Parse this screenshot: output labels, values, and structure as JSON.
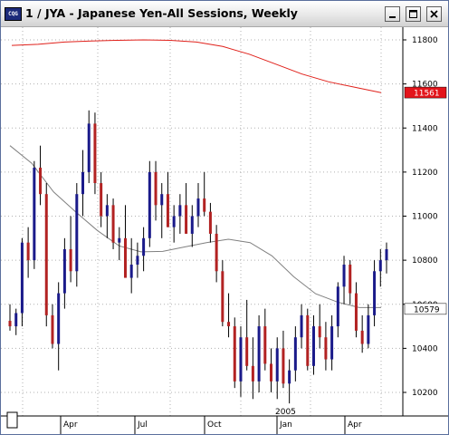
{
  "window": {
    "title": "1 / JYA - Japanese Yen-All Sessions, Weekly",
    "icon_name": "app-logo-icon",
    "icon_text": "CQG",
    "buttons": [
      "minimize-icon",
      "maximize-icon",
      "close-icon"
    ]
  },
  "chart_data": {
    "type": "candlestick",
    "y_ticks": [
      "11800",
      "11600",
      "11400",
      "11200",
      "11000",
      "10800",
      "10600",
      "10400",
      "10200"
    ],
    "ylim": [
      10100,
      11880
    ],
    "x_labels": [
      "Apr",
      "Jul",
      "Oct",
      "Jan",
      "Apr"
    ],
    "year_label": "2005",
    "grid": "dotted",
    "colors": {
      "up": "#1a1a8a",
      "down": "#b22222",
      "ma_long": "#e0201a",
      "ma_short": "#808080",
      "badge": "#e3141b"
    },
    "badges": [
      {
        "label": "11561",
        "value": 11561,
        "color": "#e3141b",
        "text_color": "#ffffff"
      },
      {
        "label": "10579",
        "value": 10579,
        "color": "#ffffff",
        "text_color": "#000000"
      }
    ],
    "bars": [
      [
        10525,
        10600,
        10480,
        10500
      ],
      [
        10500,
        10580,
        10460,
        10560
      ],
      [
        10560,
        10900,
        10500,
        10880
      ],
      [
        10880,
        10950,
        10720,
        10800
      ],
      [
        10800,
        11250,
        10760,
        11220
      ],
      [
        11220,
        11320,
        11050,
        11100
      ],
      [
        11100,
        11150,
        10500,
        10550
      ],
      [
        10550,
        10600,
        10400,
        10420
      ],
      [
        10420,
        10700,
        10300,
        10650
      ],
      [
        10650,
        10900,
        10580,
        10850
      ],
      [
        10850,
        11000,
        10700,
        10750
      ],
      [
        10750,
        11150,
        10680,
        11100
      ],
      [
        11100,
        11300,
        11000,
        11200
      ],
      [
        11200,
        11480,
        11150,
        11420
      ],
      [
        11420,
        11470,
        11100,
        11150
      ],
      [
        11150,
        11200,
        10950,
        11000
      ],
      [
        11000,
        11100,
        10900,
        11050
      ],
      [
        11050,
        11080,
        10850,
        10880
      ],
      [
        10880,
        10950,
        10800,
        10900
      ],
      [
        10900,
        11050,
        10850,
        10720
      ],
      [
        10720,
        10900,
        10650,
        10780
      ],
      [
        10780,
        10880,
        10720,
        10820
      ],
      [
        10820,
        10950,
        10750,
        10900
      ],
      [
        10900,
        11250,
        10860,
        11200
      ],
      [
        11200,
        11250,
        10980,
        11050
      ],
      [
        11050,
        11150,
        10900,
        11100
      ],
      [
        11100,
        11200,
        10950,
        10950
      ],
      [
        10950,
        11050,
        10880,
        11000
      ],
      [
        11000,
        11100,
        10920,
        11050
      ],
      [
        11050,
        11150,
        11000,
        10920
      ],
      [
        10920,
        11050,
        10860,
        11000
      ],
      [
        11000,
        11150,
        10950,
        11080
      ],
      [
        11080,
        11200,
        11000,
        11020
      ],
      [
        11020,
        11060,
        10880,
        10920
      ],
      [
        10920,
        10960,
        10700,
        10750
      ],
      [
        10750,
        10800,
        10500,
        10520
      ],
      [
        10520,
        10650,
        10450,
        10500
      ],
      [
        10500,
        10540,
        10220,
        10250
      ],
      [
        10250,
        10500,
        10180,
        10450
      ],
      [
        10450,
        10620,
        10300,
        10320
      ],
      [
        10320,
        10450,
        10170,
        10250
      ],
      [
        10250,
        10550,
        10200,
        10500
      ],
      [
        10500,
        10580,
        10300,
        10330
      ],
      [
        10330,
        10400,
        10200,
        10250
      ],
      [
        10250,
        10450,
        10170,
        10400
      ],
      [
        10400,
        10480,
        10220,
        10240
      ],
      [
        10240,
        10350,
        10150,
        10300
      ],
      [
        10300,
        10500,
        10250,
        10450
      ],
      [
        10450,
        10600,
        10400,
        10550
      ],
      [
        10550,
        10580,
        10300,
        10320
      ],
      [
        10320,
        10550,
        10280,
        10500
      ],
      [
        10500,
        10600,
        10400,
        10450
      ],
      [
        10450,
        10520,
        10300,
        10350
      ],
      [
        10350,
        10550,
        10300,
        10500
      ],
      [
        10500,
        10700,
        10450,
        10680
      ],
      [
        10680,
        10820,
        10600,
        10780
      ],
      [
        10780,
        10800,
        10600,
        10650
      ],
      [
        10650,
        10700,
        10450,
        10480
      ],
      [
        10480,
        10550,
        10380,
        10420
      ],
      [
        10420,
        10600,
        10400,
        10550
      ],
      [
        10550,
        10800,
        10500,
        10750
      ],
      [
        10750,
        10850,
        10680,
        10800
      ],
      [
        10800,
        10880,
        10740,
        10850
      ]
    ],
    "ma_long": [
      11775,
      11780,
      11790,
      11795,
      11798,
      11800,
      11798,
      11790,
      11770,
      11735,
      11690,
      11645,
      11610,
      11585,
      11560
    ],
    "ma_short": [
      11320,
      11240,
      11110,
      11020,
      10935,
      10865,
      10838,
      10840,
      10860,
      10880,
      10895,
      10880,
      10820,
      10725,
      10648,
      10610,
      10585,
      10585
    ]
  }
}
